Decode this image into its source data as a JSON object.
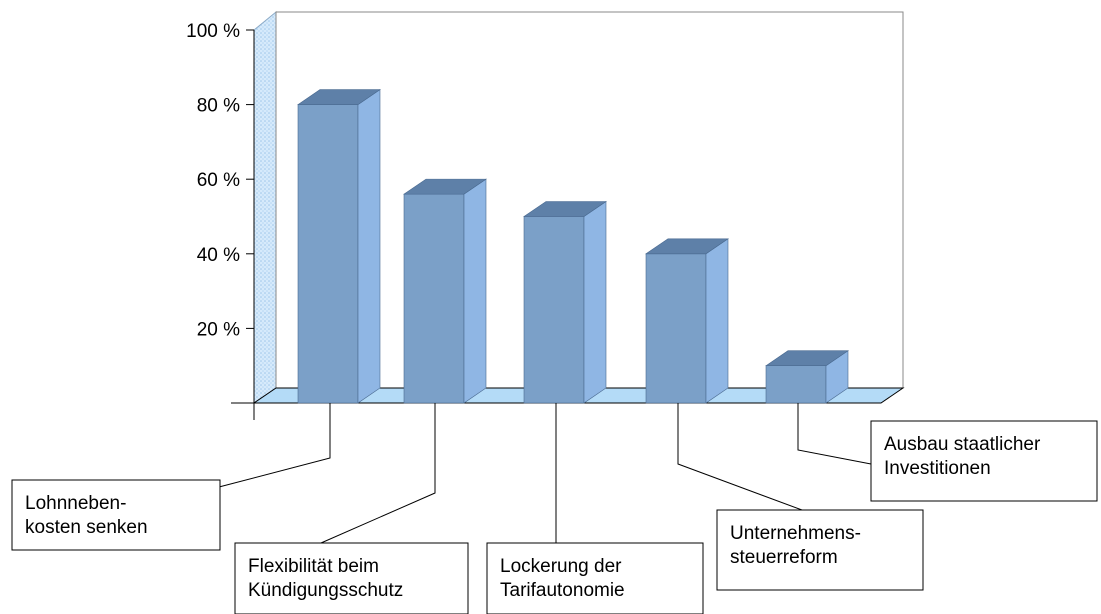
{
  "chart_data": {
    "type": "bar",
    "categories": [
      [
        "Lohnneben-",
        "kosten senken"
      ],
      [
        "Flexibilität beim",
        "Kündigungsschutz"
      ],
      [
        "Lockerung der",
        "Tarifautonomie"
      ],
      [
        "Unternehmens-",
        "steuerreform"
      ],
      [
        "Ausbau staatlicher",
        "Investitionen"
      ]
    ],
    "values": [
      80,
      56,
      50,
      40,
      10
    ],
    "y_tick_labels": [
      "20 %",
      "40 %",
      "60 %",
      "80 %",
      "100 %"
    ],
    "y_tick_values": [
      20,
      40,
      60,
      80,
      100
    ],
    "ylim": [
      0,
      100
    ],
    "title": "",
    "xlabel": "",
    "ylabel": "",
    "colors": {
      "bar_front": "#7ba0c8",
      "bar_side": "#8fb6e4",
      "bar_top": "#5e80a8",
      "floor": "#b4dbf7",
      "left_wall": "#d8ecfb"
    }
  }
}
